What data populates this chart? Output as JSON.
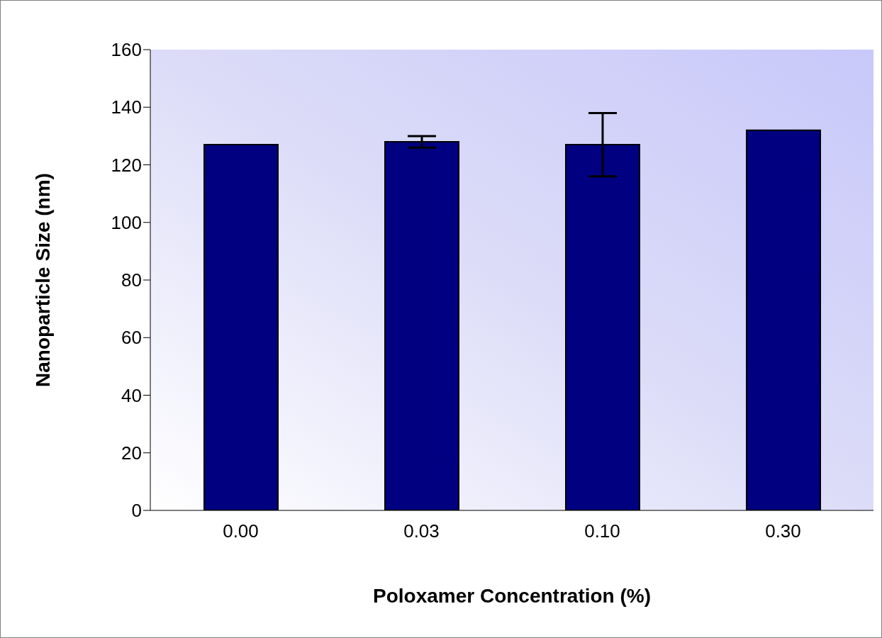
{
  "chart_data": {
    "type": "bar",
    "xlabel": "Poloxamer Concentration (%)",
    "ylabel": "Nanoparticle Size (nm)",
    "categories": [
      "0.00",
      "0.03",
      "0.10",
      "0.30"
    ],
    "values": [
      127,
      128,
      127,
      132
    ],
    "errors": [
      null,
      2,
      11,
      null
    ],
    "color": "#000080",
    "ylim": [
      0,
      160
    ],
    "yticks": [
      0,
      20,
      40,
      60,
      80,
      100,
      120,
      140,
      160
    ],
    "grid": false,
    "legend": false
  }
}
